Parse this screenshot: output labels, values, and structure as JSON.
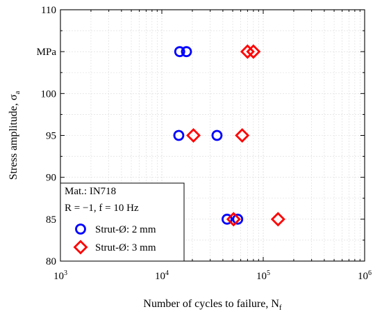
{
  "chart_data": {
    "type": "scatter",
    "xlabel_main": "Number of cycles to failure, N",
    "xlabel_sub": "f",
    "ylabel_main": "Stress amplitude, σ",
    "ylabel_sub": "a",
    "x_scale": "log",
    "xlim": [
      1000,
      1000000
    ],
    "ylim": [
      80,
      110
    ],
    "grid": true,
    "x_ticks": [
      {
        "base": "10",
        "exp": "3",
        "value": 1000
      },
      {
        "base": "10",
        "exp": "4",
        "value": 10000
      },
      {
        "base": "10",
        "exp": "5",
        "value": 100000
      },
      {
        "base": "10",
        "exp": "6",
        "value": 1000000
      }
    ],
    "y_ticks": [
      {
        "label": "80",
        "value": 80
      },
      {
        "label": "85",
        "value": 85
      },
      {
        "label": "90",
        "value": 90
      },
      {
        "label": "95",
        "value": 95
      },
      {
        "label": "100",
        "value": 100
      },
      {
        "label": "MPa",
        "value": 105
      },
      {
        "label": "110",
        "value": 110
      }
    ],
    "legend": {
      "placement": "bottom-left",
      "lines": [
        "Mat.: IN718",
        "R = −1, f = 10 Hz"
      ]
    },
    "series": [
      {
        "name": "Strut-Ø: 2 mm",
        "marker": "circle",
        "color": "#0000ff",
        "points": [
          {
            "x": 15000,
            "y": 105
          },
          {
            "x": 17500,
            "y": 105
          },
          {
            "x": 14700,
            "y": 95
          },
          {
            "x": 35000,
            "y": 95
          },
          {
            "x": 44000,
            "y": 85
          },
          {
            "x": 56000,
            "y": 85
          }
        ]
      },
      {
        "name": "Strut-Ø: 3 mm",
        "marker": "diamond",
        "color": "#ff0000",
        "points": [
          {
            "x": 70000,
            "y": 105
          },
          {
            "x": 80000,
            "y": 105
          },
          {
            "x": 20500,
            "y": 95
          },
          {
            "x": 62000,
            "y": 95
          },
          {
            "x": 51000,
            "y": 85
          },
          {
            "x": 140000,
            "y": 85
          }
        ]
      }
    ]
  }
}
